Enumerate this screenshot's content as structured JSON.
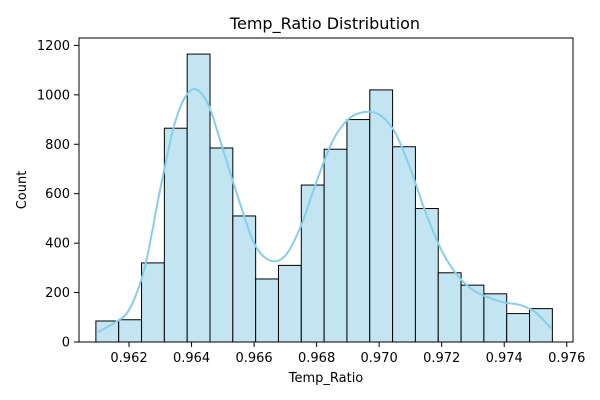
{
  "chart_data": {
    "type": "bar",
    "title": "Temp_Ratio Distribution",
    "xlabel": "Temp_Ratio",
    "ylabel": "Count",
    "xlim": [
      0.9604,
      0.9762
    ],
    "ylim": [
      0,
      1230
    ],
    "xticks": [
      0.962,
      0.964,
      0.966,
      0.968,
      0.97,
      0.972,
      0.974,
      0.976
    ],
    "xtick_labels": [
      "0.962",
      "0.964",
      "0.966",
      "0.968",
      "0.970",
      "0.972",
      "0.974",
      "0.976"
    ],
    "yticks": [
      0,
      200,
      400,
      600,
      800,
      1000,
      1200
    ],
    "ytick_labels": [
      "0",
      "200",
      "400",
      "600",
      "800",
      "1000",
      "1200"
    ],
    "bin_start": 0.96094,
    "bin_width": 0.00073,
    "counts": [
      85,
      90,
      320,
      865,
      1165,
      785,
      510,
      255,
      310,
      635,
      780,
      900,
      1020,
      790,
      540,
      280,
      230,
      195,
      115,
      135
    ],
    "bar_color": "#c3e5f1",
    "bar_edge_color": "#000000",
    "kde": {
      "color": "#87ceeb",
      "x": [
        0.961,
        0.9615,
        0.962,
        0.9625,
        0.963,
        0.9635,
        0.964,
        0.9645,
        0.965,
        0.9655,
        0.966,
        0.9665,
        0.967,
        0.9675,
        0.968,
        0.9685,
        0.969,
        0.9695,
        0.97,
        0.9705,
        0.971,
        0.9715,
        0.972,
        0.9725,
        0.973,
        0.9735,
        0.974,
        0.9745,
        0.975,
        0.9755
      ],
      "y": [
        40,
        75,
        130,
        300,
        620,
        900,
        1020,
        970,
        780,
        580,
        400,
        330,
        350,
        470,
        650,
        810,
        900,
        930,
        920,
        850,
        700,
        520,
        370,
        270,
        210,
        180,
        160,
        150,
        120,
        55
      ]
    },
    "grid": false,
    "legend": "none"
  }
}
